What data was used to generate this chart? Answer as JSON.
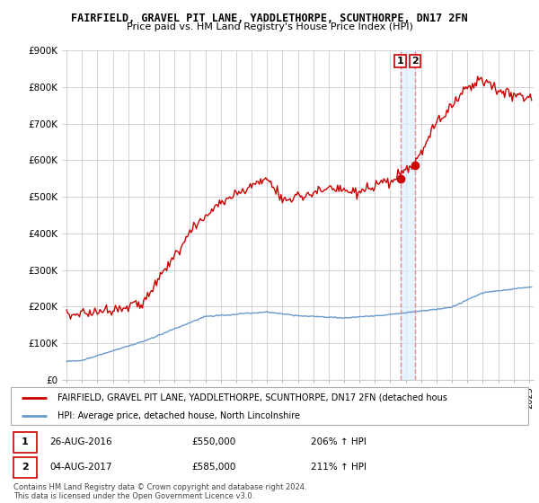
{
  "title": "FAIRFIELD, GRAVEL PIT LANE, YADDLETHORPE, SCUNTHORPE, DN17 2FN",
  "subtitle": "Price paid vs. HM Land Registry's House Price Index (HPI)",
  "ylim": [
    0,
    900000
  ],
  "yticks": [
    0,
    100000,
    200000,
    300000,
    400000,
    500000,
    600000,
    700000,
    800000,
    900000
  ],
  "ytick_labels": [
    "£0",
    "£100K",
    "£200K",
    "£300K",
    "£400K",
    "£500K",
    "£600K",
    "£700K",
    "£800K",
    "£900K"
  ],
  "legend_line1": "FAIRFIELD, GRAVEL PIT LANE, YADDLETHORPE, SCUNTHORPE, DN17 2FN (detached hous",
  "legend_line2": "HPI: Average price, detached house, North Lincolnshire",
  "point1_label": "1",
  "point1_date": "26-AUG-2016",
  "point1_price": "£550,000",
  "point1_hpi": "206% ↑ HPI",
  "point1_x": 2016.65,
  "point1_y": 550000,
  "point2_label": "2",
  "point2_date": "04-AUG-2017",
  "point2_price": "£585,000",
  "point2_hpi": "211% ↑ HPI",
  "point2_x": 2017.59,
  "point2_y": 585000,
  "footer": "Contains HM Land Registry data © Crown copyright and database right 2024.\nThis data is licensed under the Open Government Licence v3.0.",
  "red_color": "#cc0000",
  "blue_color": "#6699cc",
  "dashed_color": "#ee8888",
  "shade_color": "#ddeeff",
  "background_color": "#ffffff",
  "grid_color": "#cccccc",
  "xlim_left": 1994.7,
  "xlim_right": 2025.3
}
